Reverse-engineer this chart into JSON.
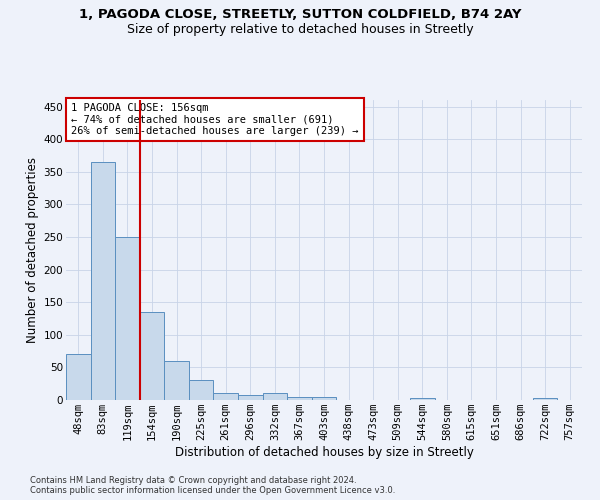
{
  "title": "1, PAGODA CLOSE, STREETLY, SUTTON COLDFIELD, B74 2AY",
  "subtitle": "Size of property relative to detached houses in Streetly",
  "xlabel": "Distribution of detached houses by size in Streetly",
  "ylabel": "Number of detached properties",
  "bar_labels": [
    "48sqm",
    "83sqm",
    "119sqm",
    "154sqm",
    "190sqm",
    "225sqm",
    "261sqm",
    "296sqm",
    "332sqm",
    "367sqm",
    "403sqm",
    "438sqm",
    "473sqm",
    "509sqm",
    "544sqm",
    "580sqm",
    "615sqm",
    "651sqm",
    "686sqm",
    "722sqm",
    "757sqm"
  ],
  "bar_values": [
    70,
    365,
    250,
    135,
    60,
    30,
    10,
    8,
    10,
    5,
    4,
    0,
    0,
    0,
    3,
    0,
    0,
    0,
    0,
    3,
    0
  ],
  "bar_color": "#c8d9eb",
  "bar_edge_color": "#5a8fc0",
  "grid_color": "#c8d4e8",
  "background_color": "#eef2fa",
  "vline_color": "#cc0000",
  "annotation_text": "1 PAGODA CLOSE: 156sqm\n← 74% of detached houses are smaller (691)\n26% of semi-detached houses are larger (239) →",
  "annotation_box_color": "#ffffff",
  "annotation_box_edge": "#cc0000",
  "ylim": [
    0,
    460
  ],
  "footnote": "Contains HM Land Registry data © Crown copyright and database right 2024.\nContains public sector information licensed under the Open Government Licence v3.0.",
  "title_fontsize": 9.5,
  "subtitle_fontsize": 9,
  "ylabel_fontsize": 8.5,
  "xlabel_fontsize": 8.5,
  "tick_fontsize": 7.5,
  "annot_fontsize": 7.5,
  "footnote_fontsize": 6.0
}
